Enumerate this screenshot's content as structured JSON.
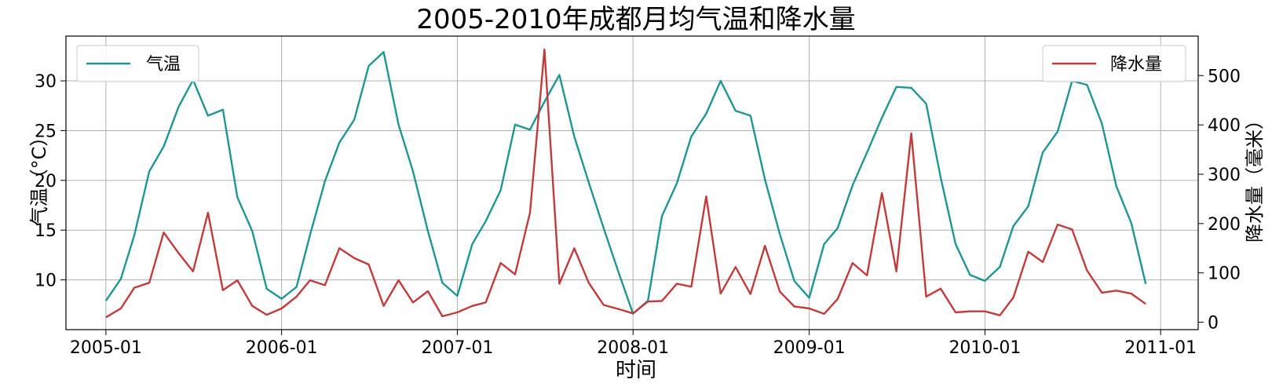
{
  "chart_data": {
    "type": "line",
    "title": "2005-2010年成都月均气温和降水量",
    "xlabel": "时间",
    "ylabel": "气温（°C）",
    "ylabel_right": "降水量（毫米）",
    "x_tick_labels": [
      "2005-01",
      "2006-01",
      "2007-01",
      "2008-01",
      "2009-01",
      "2010-01",
      "2011-01"
    ],
    "x_range": [
      "2004-10-10",
      "2011-03-20"
    ],
    "x": [
      "2005-01",
      "2005-02",
      "2005-03",
      "2005-04",
      "2005-05",
      "2005-06",
      "2005-07",
      "2005-08",
      "2005-09",
      "2005-10",
      "2005-11",
      "2005-12",
      "2006-01",
      "2006-02",
      "2006-03",
      "2006-04",
      "2006-05",
      "2006-06",
      "2006-07",
      "2006-08",
      "2006-09",
      "2006-10",
      "2006-11",
      "2006-12",
      "2007-01",
      "2007-02",
      "2007-03",
      "2007-04",
      "2007-05",
      "2007-06",
      "2007-07",
      "2007-08",
      "2007-09",
      "2007-10",
      "2007-11",
      "2007-12",
      "2008-01",
      "2008-02",
      "2008-03",
      "2008-04",
      "2008-05",
      "2008-06",
      "2008-07",
      "2008-08",
      "2008-09",
      "2008-10",
      "2008-11",
      "2008-12",
      "2009-01",
      "2009-02",
      "2009-03",
      "2009-04",
      "2009-05",
      "2009-06",
      "2009-07",
      "2009-08",
      "2009-09",
      "2009-10",
      "2009-11",
      "2009-12",
      "2010-01",
      "2010-02",
      "2010-03",
      "2010-04",
      "2010-05",
      "2010-06",
      "2010-07",
      "2010-08",
      "2010-09",
      "2010-10",
      "2010-11",
      "2010-12"
    ],
    "y_left": {
      "ticks": [
        10,
        15,
        20,
        25,
        30
      ],
      "range": [
        5,
        34.5
      ]
    },
    "y_right": {
      "ticks": [
        0,
        100,
        200,
        300,
        400,
        500
      ],
      "range": [
        -15,
        580
      ]
    },
    "series": [
      {
        "name": "气温",
        "axis": "left",
        "color": "#1f9696",
        "values": [
          7.9,
          10.1,
          14.5,
          20.9,
          23.4,
          27.4,
          30.1,
          26.5,
          27.1,
          18.3,
          14.9,
          9.1,
          8.1,
          9.3,
          14.5,
          19.9,
          23.8,
          26.1,
          31.5,
          32.9,
          25.6,
          20.9,
          14.9,
          9.7,
          8.4,
          13.6,
          15.9,
          19.0,
          25.6,
          25.1,
          27.9,
          30.6,
          24.4,
          19.8,
          15.2,
          10.9,
          6.6,
          7.9,
          16.4,
          19.7,
          24.4,
          26.7,
          30.0,
          27.0,
          26.5,
          20.1,
          14.6,
          9.9,
          8.2,
          13.6,
          15.2,
          19.5,
          22.8,
          26.3,
          29.4,
          29.3,
          27.7,
          20.3,
          13.6,
          10.5,
          9.9,
          11.3,
          15.4,
          17.4,
          22.8,
          24.9,
          30.0,
          29.6,
          25.7,
          19.4,
          15.7,
          9.6
        ]
      },
      {
        "name": "降水量",
        "axis": "right",
        "color": "#c23b3b",
        "values": [
          10,
          28,
          70,
          80,
          182,
          140,
          103,
          222,
          65,
          85,
          33,
          15,
          28,
          52,
          85,
          75,
          150,
          130,
          117,
          33,
          85,
          40,
          63,
          12,
          20,
          33,
          40,
          120,
          97,
          222,
          553,
          78,
          150,
          80,
          35,
          27,
          18,
          42,
          43,
          78,
          72,
          255,
          58,
          112,
          57,
          155,
          62,
          32,
          28,
          17,
          47,
          120,
          95,
          262,
          103,
          383,
          52,
          68,
          20,
          22,
          22,
          14,
          50,
          143,
          122,
          198,
          188,
          105,
          60,
          64,
          58,
          37
        ]
      }
    ],
    "grid": true,
    "legend_left": "top-left",
    "legend_right": "top-right"
  }
}
